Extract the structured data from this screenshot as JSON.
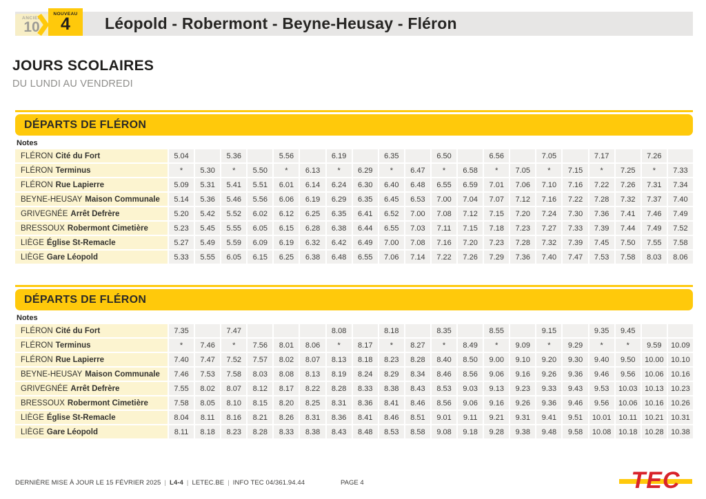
{
  "header": {
    "ancien_label": "ANCIEN",
    "ancien_number": "10",
    "nouveau_label": "NOUVEAU",
    "nouveau_number": "4",
    "title": "Léopold - Robermont - Beyne-Heusay - Fléron"
  },
  "section": {
    "title": "JOURS SCOLAIRES",
    "subtitle": "DU LUNDI AU VENDREDI"
  },
  "colors": {
    "accent_yellow": "#ffc90b",
    "pale_yellow": "#f7eec6",
    "station_cell_yellow": "#fcf4d0",
    "time_cell_gray": "#f1f0ee",
    "topbar_gray": "#e7e6e5",
    "logo_red": "#d8232a"
  },
  "tables": [
    {
      "header": "DÉPARTS DE FLÉRON",
      "notes_label": "Notes",
      "rows": [
        {
          "prefix": "FLÉRON",
          "name": "Cité du Fort",
          "times": [
            "5.04",
            "",
            "5.36",
            "",
            "5.56",
            "",
            "6.19",
            "",
            "6.35",
            "",
            "6.50",
            "",
            "6.56",
            "",
            "7.05",
            "",
            "7.17",
            "",
            "7.26",
            ""
          ]
        },
        {
          "prefix": "FLÉRON",
          "name": "Terminus",
          "times": [
            "*",
            "5.30",
            "*",
            "5.50",
            "*",
            "6.13",
            "*",
            "6.29",
            "*",
            "6.47",
            "*",
            "6.58",
            "*",
            "7.05",
            "*",
            "7.15",
            "*",
            "7.25",
            "*",
            "7.33"
          ]
        },
        {
          "prefix": "FLÉRON",
          "name": "Rue Lapierre",
          "times": [
            "5.09",
            "5.31",
            "5.41",
            "5.51",
            "6.01",
            "6.14",
            "6.24",
            "6.30",
            "6.40",
            "6.48",
            "6.55",
            "6.59",
            "7.01",
            "7.06",
            "7.10",
            "7.16",
            "7.22",
            "7.26",
            "7.31",
            "7.34"
          ]
        },
        {
          "prefix": "BEYNE-HEUSAY",
          "name": "Maison Communale",
          "times": [
            "5.14",
            "5.36",
            "5.46",
            "5.56",
            "6.06",
            "6.19",
            "6.29",
            "6.35",
            "6.45",
            "6.53",
            "7.00",
            "7.04",
            "7.07",
            "7.12",
            "7.16",
            "7.22",
            "7.28",
            "7.32",
            "7.37",
            "7.40"
          ]
        },
        {
          "prefix": "GRIVEGNÉE",
          "name": "Arrêt Defrère",
          "times": [
            "5.20",
            "5.42",
            "5.52",
            "6.02",
            "6.12",
            "6.25",
            "6.35",
            "6.41",
            "6.52",
            "7.00",
            "7.08",
            "7.12",
            "7.15",
            "7.20",
            "7.24",
            "7.30",
            "7.36",
            "7.41",
            "7.46",
            "7.49"
          ]
        },
        {
          "prefix": "BRESSOUX",
          "name": "Robermont Cimetière",
          "times": [
            "5.23",
            "5.45",
            "5.55",
            "6.05",
            "6.15",
            "6.28",
            "6.38",
            "6.44",
            "6.55",
            "7.03",
            "7.11",
            "7.15",
            "7.18",
            "7.23",
            "7.27",
            "7.33",
            "7.39",
            "7.44",
            "7.49",
            "7.52"
          ]
        },
        {
          "prefix": "LIÈGE",
          "name": "Église St-Remacle",
          "times": [
            "5.27",
            "5.49",
            "5.59",
            "6.09",
            "6.19",
            "6.32",
            "6.42",
            "6.49",
            "7.00",
            "7.08",
            "7.16",
            "7.20",
            "7.23",
            "7.28",
            "7.32",
            "7.39",
            "7.45",
            "7.50",
            "7.55",
            "7.58"
          ]
        },
        {
          "prefix": "LIÈGE",
          "name": "Gare Léopold",
          "times": [
            "5.33",
            "5.55",
            "6.05",
            "6.15",
            "6.25",
            "6.38",
            "6.48",
            "6.55",
            "7.06",
            "7.14",
            "7.22",
            "7.26",
            "7.29",
            "7.36",
            "7.40",
            "7.47",
            "7.53",
            "7.58",
            "8.03",
            "8.06"
          ]
        }
      ]
    },
    {
      "header": "DÉPARTS DE FLÉRON",
      "notes_label": "Notes",
      "rows": [
        {
          "prefix": "FLÉRON",
          "name": "Cité du Fort",
          "times": [
            "7.35",
            "",
            "7.47",
            "",
            "",
            "",
            "8.08",
            "",
            "8.18",
            "",
            "8.35",
            "",
            "8.55",
            "",
            "9.15",
            "",
            "9.35",
            "9.45",
            "",
            ""
          ]
        },
        {
          "prefix": "FLÉRON",
          "name": "Terminus",
          "times": [
            "*",
            "7.46",
            "*",
            "7.56",
            "8.01",
            "8.06",
            "*",
            "8.17",
            "*",
            "8.27",
            "*",
            "8.49",
            "*",
            "9.09",
            "*",
            "9.29",
            "*",
            "*",
            "9.59",
            "10.09"
          ]
        },
        {
          "prefix": "FLÉRON",
          "name": "Rue Lapierre",
          "times": [
            "7.40",
            "7.47",
            "7.52",
            "7.57",
            "8.02",
            "8.07",
            "8.13",
            "8.18",
            "8.23",
            "8.28",
            "8.40",
            "8.50",
            "9.00",
            "9.10",
            "9.20",
            "9.30",
            "9.40",
            "9.50",
            "10.00",
            "10.10"
          ]
        },
        {
          "prefix": "BEYNE-HEUSAY",
          "name": "Maison Communale",
          "times": [
            "7.46",
            "7.53",
            "7.58",
            "8.03",
            "8.08",
            "8.13",
            "8.19",
            "8.24",
            "8.29",
            "8.34",
            "8.46",
            "8.56",
            "9.06",
            "9.16",
            "9.26",
            "9.36",
            "9.46",
            "9.56",
            "10.06",
            "10.16"
          ]
        },
        {
          "prefix": "GRIVEGNÉE",
          "name": "Arrêt Defrère",
          "times": [
            "7.55",
            "8.02",
            "8.07",
            "8.12",
            "8.17",
            "8.22",
            "8.28",
            "8.33",
            "8.38",
            "8.43",
            "8.53",
            "9.03",
            "9.13",
            "9.23",
            "9.33",
            "9.43",
            "9.53",
            "10.03",
            "10.13",
            "10.23"
          ]
        },
        {
          "prefix": "BRESSOUX",
          "name": "Robermont Cimetière",
          "times": [
            "7.58",
            "8.05",
            "8.10",
            "8.15",
            "8.20",
            "8.25",
            "8.31",
            "8.36",
            "8.41",
            "8.46",
            "8.56",
            "9.06",
            "9.16",
            "9.26",
            "9.36",
            "9.46",
            "9.56",
            "10.06",
            "10.16",
            "10.26"
          ]
        },
        {
          "prefix": "LIÈGE",
          "name": "Église St-Remacle",
          "times": [
            "8.04",
            "8.11",
            "8.16",
            "8.21",
            "8.26",
            "8.31",
            "8.36",
            "8.41",
            "8.46",
            "8.51",
            "9.01",
            "9.11",
            "9.21",
            "9.31",
            "9.41",
            "9.51",
            "10.01",
            "10.11",
            "10.21",
            "10.31"
          ]
        },
        {
          "prefix": "LIÈGE",
          "name": "Gare Léopold",
          "times": [
            "8.11",
            "8.18",
            "8.23",
            "8.28",
            "8.33",
            "8.38",
            "8.43",
            "8.48",
            "8.53",
            "8.58",
            "9.08",
            "9.18",
            "9.28",
            "9.38",
            "9.48",
            "9.58",
            "10.08",
            "10.18",
            "10.28",
            "10.38"
          ]
        }
      ]
    }
  ],
  "footer": {
    "parts": [
      {
        "text": "DERNIÈRE MISE À JOUR LE 15 FÉVRIER 2025",
        "bold": false
      },
      {
        "text": "L4-4",
        "bold": true
      },
      {
        "text": "LETEC.BE",
        "bold": false
      },
      {
        "text": "INFO TEC 04/361.94.44",
        "bold": false
      }
    ],
    "page": "PAGE 4",
    "logo": "TEC"
  }
}
